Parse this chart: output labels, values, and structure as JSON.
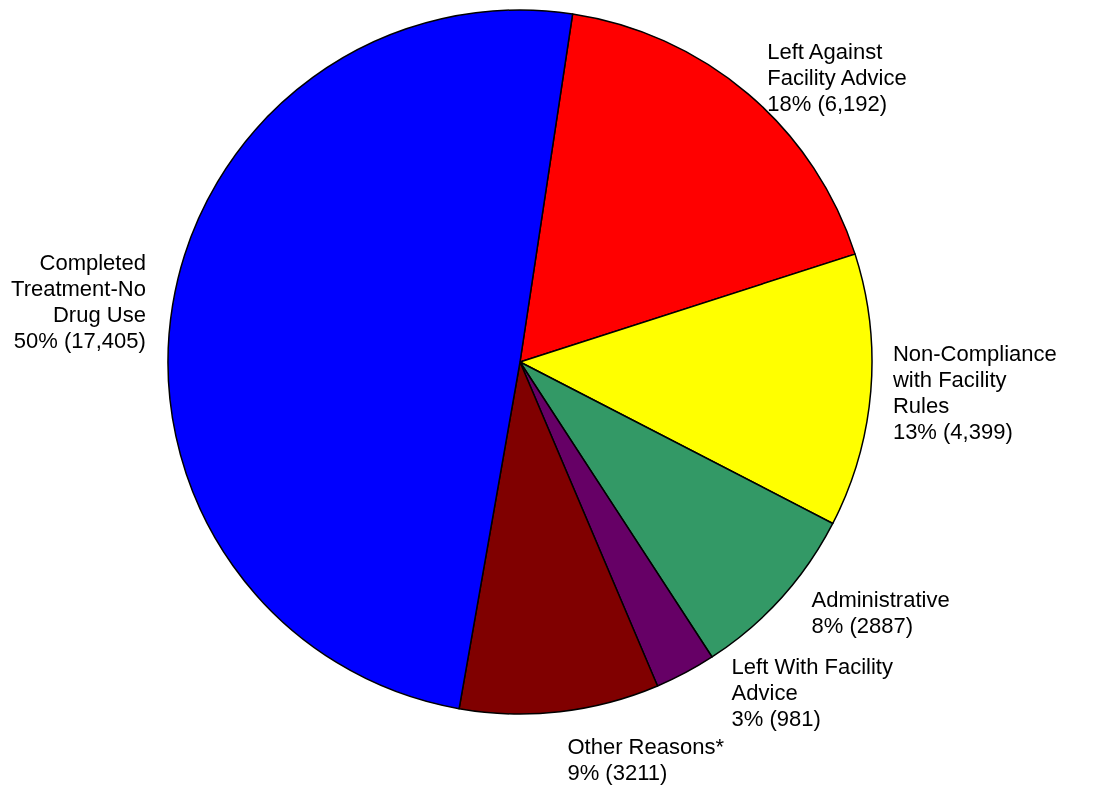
{
  "chart_data": {
    "type": "pie",
    "categories": [
      "Left Against\nFacility Advice",
      "Non-Compliance\nwith Facility\nRules",
      "Administrative",
      "Left With Facility\nAdvice",
      "Other Reasons*",
      "Completed\nTreatment-No\nDrug Use"
    ],
    "values": [
      6192,
      4399,
      2887,
      981,
      3211,
      17405
    ],
    "value_labels": [
      "18% (6,192)",
      "13% (4,399)",
      "8% (2887)",
      "3% (981)",
      "9% (3211)",
      "50% (17,405)"
    ],
    "colors": [
      "#ff0000",
      "#ffff00",
      "#339966",
      "#660066",
      "#800000",
      "#0000ff"
    ],
    "legend": false
  }
}
